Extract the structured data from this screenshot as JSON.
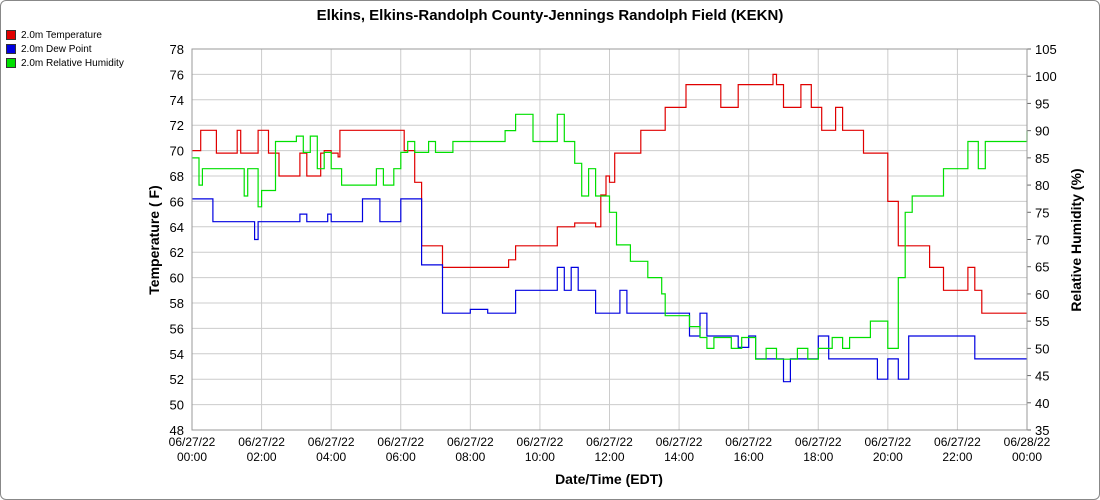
{
  "chart_data": {
    "type": "line",
    "title": "Elkins, Elkins-Randolph County-Jennings Randolph Field (KEKN)",
    "xlabel": "Date/Time (EDT)",
    "ylabel": "Temperature ( F)",
    "y2label": "Relative Humidity (%)",
    "ylim": [
      48,
      78
    ],
    "y2lim": [
      35,
      105
    ],
    "yticks": [
      "48",
      "50",
      "52",
      "54",
      "56",
      "58",
      "60",
      "62",
      "64",
      "66",
      "68",
      "70",
      "72",
      "74",
      "76",
      "78"
    ],
    "y2ticks": [
      "35",
      "40",
      "45",
      "50",
      "55",
      "60",
      "65",
      "70",
      "75",
      "80",
      "85",
      "90",
      "95",
      "100",
      "105"
    ],
    "xticks": [
      {
        "date": "06/27/22",
        "time": "00:00"
      },
      {
        "date": "06/27/22",
        "time": "02:00"
      },
      {
        "date": "06/27/22",
        "time": "04:00"
      },
      {
        "date": "06/27/22",
        "time": "06:00"
      },
      {
        "date": "06/27/22",
        "time": "08:00"
      },
      {
        "date": "06/27/22",
        "time": "10:00"
      },
      {
        "date": "06/27/22",
        "time": "12:00"
      },
      {
        "date": "06/27/22",
        "time": "14:00"
      },
      {
        "date": "06/27/22",
        "time": "16:00"
      },
      {
        "date": "06/27/22",
        "time": "18:00"
      },
      {
        "date": "06/27/22",
        "time": "20:00"
      },
      {
        "date": "06/27/22",
        "time": "22:00"
      },
      {
        "date": "06/28/22",
        "time": "00:00"
      }
    ],
    "grid": true,
    "legend_position": "top-left",
    "series": [
      {
        "name": "2.0m Temperature",
        "axis": "left",
        "color": "#e00000",
        "points": [
          [
            0,
            70
          ],
          [
            0.2,
            70
          ],
          [
            0.25,
            71.6
          ],
          [
            0.6,
            71.6
          ],
          [
            0.7,
            69.8
          ],
          [
            1.2,
            69.8
          ],
          [
            1.3,
            71.6
          ],
          [
            1.4,
            69.8
          ],
          [
            1.8,
            69.8
          ],
          [
            1.9,
            71.6
          ],
          [
            2.1,
            71.6
          ],
          [
            2.2,
            69.8
          ],
          [
            2.4,
            69.8
          ],
          [
            2.5,
            68
          ],
          [
            3.0,
            68
          ],
          [
            3.1,
            69.8
          ],
          [
            3.3,
            68
          ],
          [
            3.6,
            68
          ],
          [
            3.7,
            69.8
          ],
          [
            3.8,
            70
          ],
          [
            4.0,
            69.8
          ],
          [
            4.2,
            69.5
          ],
          [
            4.25,
            71.6
          ],
          [
            5.0,
            71.6
          ],
          [
            5.1,
            71.6
          ],
          [
            6.0,
            71.6
          ],
          [
            6.1,
            70
          ],
          [
            6.4,
            67.5
          ],
          [
            6.6,
            62.5
          ],
          [
            6.8,
            62.5
          ],
          [
            7.2,
            60.8
          ],
          [
            8.0,
            60.8
          ],
          [
            8.5,
            60.8
          ],
          [
            9.0,
            60.8
          ],
          [
            9.1,
            61.4
          ],
          [
            9.3,
            62.5
          ],
          [
            10.0,
            62.5
          ],
          [
            10.4,
            62.5
          ],
          [
            10.5,
            64
          ],
          [
            11.0,
            64.3
          ],
          [
            11.4,
            64.3
          ],
          [
            11.6,
            64
          ],
          [
            11.75,
            66.5
          ],
          [
            11.9,
            68
          ],
          [
            12.0,
            67.5
          ],
          [
            12.15,
            69.8
          ],
          [
            12.5,
            69.8
          ],
          [
            12.9,
            71.6
          ],
          [
            13.4,
            71.6
          ],
          [
            13.6,
            73.4
          ],
          [
            14.0,
            73.4
          ],
          [
            14.2,
            75.2
          ],
          [
            15.0,
            75.2
          ],
          [
            15.2,
            73.4
          ],
          [
            15.6,
            73.4
          ],
          [
            15.7,
            75.2
          ],
          [
            16.0,
            75.2
          ],
          [
            16.2,
            75.2
          ],
          [
            16.6,
            75.2
          ],
          [
            16.7,
            76
          ],
          [
            16.8,
            75.2
          ],
          [
            17.0,
            73.4
          ],
          [
            17.4,
            73.4
          ],
          [
            17.5,
            75.2
          ],
          [
            17.8,
            73.4
          ],
          [
            18.1,
            71.6
          ],
          [
            18.4,
            71.6
          ],
          [
            18.5,
            73.4
          ],
          [
            18.7,
            71.6
          ],
          [
            19.0,
            71.6
          ],
          [
            19.3,
            69.8
          ],
          [
            19.8,
            69.8
          ],
          [
            20.0,
            66
          ],
          [
            20.3,
            62.5
          ],
          [
            20.6,
            62.5
          ],
          [
            21.0,
            62.5
          ],
          [
            21.2,
            60.8
          ],
          [
            21.5,
            60.8
          ],
          [
            21.6,
            59
          ],
          [
            22.0,
            59
          ],
          [
            22.2,
            59
          ],
          [
            22.3,
            60.8
          ],
          [
            22.5,
            59
          ],
          [
            22.7,
            57.2
          ],
          [
            23.5,
            57.2
          ],
          [
            24,
            57.2
          ]
        ]
      },
      {
        "name": "2.0m Dew Point",
        "axis": "left",
        "color": "#0000e0",
        "points": [
          [
            0,
            66.2
          ],
          [
            0.5,
            66.2
          ],
          [
            0.6,
            64.4
          ],
          [
            1.2,
            64.4
          ],
          [
            1.3,
            64.4
          ],
          [
            1.7,
            64.4
          ],
          [
            1.8,
            63
          ],
          [
            1.9,
            64.4
          ],
          [
            2.6,
            64.4
          ],
          [
            2.8,
            64.4
          ],
          [
            3.0,
            64.4
          ],
          [
            3.1,
            65
          ],
          [
            3.3,
            64.4
          ],
          [
            3.6,
            64.4
          ],
          [
            3.8,
            64.4
          ],
          [
            3.9,
            65
          ],
          [
            4.0,
            64.4
          ],
          [
            4.8,
            64.4
          ],
          [
            4.9,
            66.2
          ],
          [
            5.3,
            66.2
          ],
          [
            5.4,
            64.4
          ],
          [
            5.9,
            64.4
          ],
          [
            6.0,
            66.2
          ],
          [
            6.5,
            66.2
          ],
          [
            6.6,
            61
          ],
          [
            6.9,
            61
          ],
          [
            7.2,
            57.2
          ],
          [
            7.5,
            57.2
          ],
          [
            7.8,
            57.2
          ],
          [
            8.0,
            57.5
          ],
          [
            8.5,
            57.2
          ],
          [
            9.0,
            57.2
          ],
          [
            9.3,
            59
          ],
          [
            10.0,
            59
          ],
          [
            10.1,
            59
          ],
          [
            10.3,
            59
          ],
          [
            10.5,
            60.8
          ],
          [
            10.7,
            59
          ],
          [
            10.9,
            60.8
          ],
          [
            11.1,
            59
          ],
          [
            11.3,
            59
          ],
          [
            11.6,
            57.2
          ],
          [
            12.0,
            57.2
          ],
          [
            12.3,
            59
          ],
          [
            12.5,
            57.2
          ],
          [
            13.0,
            57.2
          ],
          [
            13.5,
            57.2
          ],
          [
            14.0,
            57.2
          ],
          [
            14.3,
            55.4
          ],
          [
            14.6,
            57.2
          ],
          [
            14.8,
            55.4
          ],
          [
            15.2,
            55.4
          ],
          [
            15.6,
            55.4
          ],
          [
            15.7,
            54.5
          ],
          [
            16.0,
            55.4
          ],
          [
            16.2,
            53.6
          ],
          [
            16.5,
            53.6
          ],
          [
            16.8,
            53.6
          ],
          [
            17.0,
            51.8
          ],
          [
            17.2,
            53.6
          ],
          [
            17.6,
            53.6
          ],
          [
            17.8,
            53.6
          ],
          [
            18.0,
            55.4
          ],
          [
            18.3,
            53.6
          ],
          [
            18.8,
            53.6
          ],
          [
            19.3,
            53.6
          ],
          [
            19.7,
            52
          ],
          [
            20.0,
            53.6
          ],
          [
            20.3,
            52
          ],
          [
            20.6,
            55.4
          ],
          [
            21.0,
            55.4
          ],
          [
            21.5,
            55.4
          ],
          [
            22.3,
            55.4
          ],
          [
            22.5,
            53.6
          ],
          [
            23.0,
            53.6
          ],
          [
            23.5,
            53.6
          ],
          [
            24,
            53.6
          ]
        ]
      },
      {
        "name": "2.0m Relative Humidity",
        "axis": "right",
        "color": "#00e000",
        "points": [
          [
            0,
            85
          ],
          [
            0.2,
            80
          ],
          [
            0.3,
            83
          ],
          [
            0.5,
            83
          ],
          [
            1.0,
            83
          ],
          [
            1.4,
            83
          ],
          [
            1.5,
            78
          ],
          [
            1.6,
            83
          ],
          [
            1.8,
            83
          ],
          [
            1.9,
            76
          ],
          [
            2.0,
            79
          ],
          [
            2.4,
            88
          ],
          [
            2.8,
            88
          ],
          [
            3.0,
            89
          ],
          [
            3.2,
            86
          ],
          [
            3.4,
            89
          ],
          [
            3.6,
            83
          ],
          [
            3.8,
            86
          ],
          [
            4.0,
            83
          ],
          [
            4.3,
            80
          ],
          [
            4.6,
            80
          ],
          [
            5.0,
            80
          ],
          [
            5.3,
            83
          ],
          [
            5.5,
            80
          ],
          [
            5.8,
            83
          ],
          [
            6.0,
            86
          ],
          [
            6.2,
            88
          ],
          [
            6.4,
            86
          ],
          [
            6.6,
            86
          ],
          [
            6.8,
            88
          ],
          [
            7.0,
            86
          ],
          [
            7.5,
            88
          ],
          [
            8.0,
            88
          ],
          [
            8.5,
            88
          ],
          [
            9.0,
            90
          ],
          [
            9.3,
            93
          ],
          [
            9.6,
            93
          ],
          [
            9.8,
            88
          ],
          [
            10.0,
            88
          ],
          [
            10.4,
            88
          ],
          [
            10.5,
            93
          ],
          [
            10.7,
            88
          ],
          [
            10.9,
            88
          ],
          [
            11.0,
            84
          ],
          [
            11.2,
            78
          ],
          [
            11.4,
            83
          ],
          [
            11.6,
            78
          ],
          [
            11.8,
            78
          ],
          [
            12.0,
            75
          ],
          [
            12.2,
            69
          ],
          [
            12.4,
            69
          ],
          [
            12.6,
            66
          ],
          [
            12.8,
            66
          ],
          [
            13.1,
            63
          ],
          [
            13.3,
            63
          ],
          [
            13.5,
            60
          ],
          [
            13.6,
            56
          ],
          [
            13.8,
            56
          ],
          [
            14.0,
            56
          ],
          [
            14.3,
            54
          ],
          [
            14.6,
            52
          ],
          [
            14.8,
            50
          ],
          [
            15.0,
            52
          ],
          [
            15.4,
            52
          ],
          [
            15.5,
            50
          ],
          [
            15.8,
            52
          ],
          [
            16.2,
            48
          ],
          [
            16.5,
            50
          ],
          [
            16.8,
            48
          ],
          [
            17.0,
            48
          ],
          [
            17.4,
            50
          ],
          [
            17.7,
            48
          ],
          [
            18.0,
            50
          ],
          [
            18.4,
            52
          ],
          [
            18.7,
            50
          ],
          [
            18.9,
            52
          ],
          [
            19.3,
            52
          ],
          [
            19.5,
            55
          ],
          [
            19.8,
            55
          ],
          [
            20.0,
            50
          ],
          [
            20.3,
            63
          ],
          [
            20.5,
            75
          ],
          [
            20.7,
            78
          ],
          [
            21.0,
            78
          ],
          [
            21.3,
            78
          ],
          [
            21.6,
            83
          ],
          [
            22.0,
            83
          ],
          [
            22.3,
            88
          ],
          [
            22.6,
            83
          ],
          [
            22.8,
            88
          ],
          [
            23.2,
            88
          ],
          [
            23.5,
            88
          ],
          [
            23.9,
            88
          ],
          [
            24,
            90
          ]
        ]
      }
    ]
  }
}
